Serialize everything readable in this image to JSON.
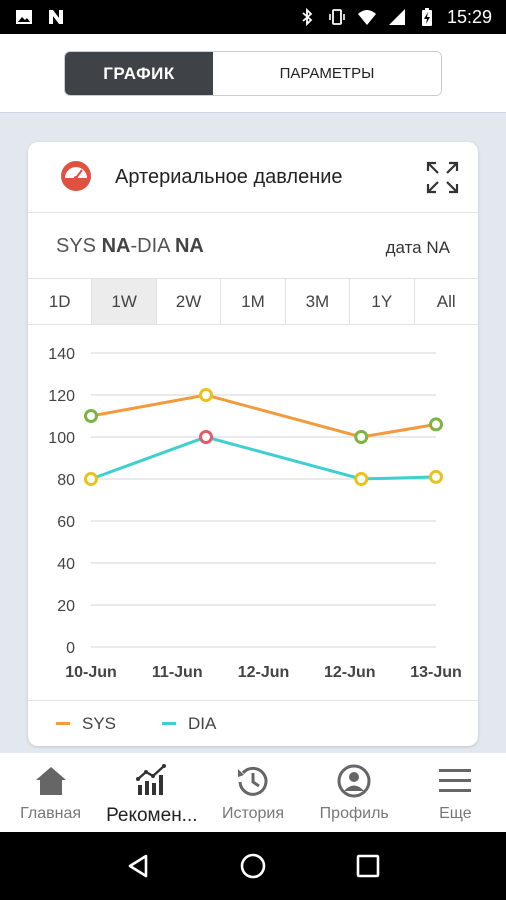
{
  "status_bar": {
    "time": "15:29",
    "left_icons": [
      "image-icon",
      "n-app-icon"
    ],
    "right_icons": [
      "bluetooth-icon",
      "vibrate-icon",
      "wifi-icon",
      "signal-icon",
      "battery-charging-icon"
    ]
  },
  "tabs": [
    {
      "label": "ГРАФИК",
      "active": true
    },
    {
      "label": "ПАРАМЕТРЫ",
      "active": false
    }
  ],
  "card": {
    "title": "Артериальное давление",
    "icon": "gauge-icon",
    "expand_icon": "expand-icon",
    "sys_label": "SYS",
    "sys_value": "NA",
    "separator": "-",
    "dia_label": "DIA",
    "dia_value": "NA",
    "date_label": "дата",
    "date_value": "NA"
  },
  "ranges": [
    {
      "label": "1D",
      "active": false
    },
    {
      "label": "1W",
      "active": true
    },
    {
      "label": "2W",
      "active": false
    },
    {
      "label": "1M",
      "active": false
    },
    {
      "label": "3M",
      "active": false
    },
    {
      "label": "1Y",
      "active": false
    },
    {
      "label": "All",
      "active": false
    }
  ],
  "chart_data": {
    "type": "line",
    "categories": [
      "10-Jun",
      "11-Jun",
      "12-Jun",
      "12-Jun",
      "13-Jun"
    ],
    "x": [
      0,
      1,
      2.35,
      3
    ],
    "x_tick_positions": [
      0,
      0.75,
      1.5,
      2.25,
      3
    ],
    "ylim": [
      0,
      140
    ],
    "yticks": [
      0,
      20,
      40,
      60,
      80,
      100,
      120,
      140
    ],
    "grid": true,
    "legend": "bottom",
    "series": [
      {
        "name": "SYS",
        "color": "#f39a3e",
        "values": [
          110,
          120,
          100,
          106
        ],
        "point_colors": [
          "#7cb342",
          "#e8c21d",
          "#7cb342",
          "#7cb342"
        ]
      },
      {
        "name": "DIA",
        "color": "#3fcfcf",
        "values": [
          80,
          100,
          80,
          81
        ],
        "point_colors": [
          "#e8c21d",
          "#e05b6c",
          "#e8c21d",
          "#e8c21d"
        ]
      }
    ]
  },
  "bottom_nav": [
    {
      "label": "Главная",
      "icon": "home-icon",
      "active": false
    },
    {
      "label": "Рекомен...",
      "icon": "bar-chart-icon",
      "active": true
    },
    {
      "label": "История",
      "icon": "history-icon",
      "active": false
    },
    {
      "label": "Профиль",
      "icon": "profile-icon",
      "active": false
    },
    {
      "label": "Еще",
      "icon": "menu-icon",
      "active": false
    }
  ],
  "system_nav": [
    "back-icon",
    "home-circle-icon",
    "recents-icon"
  ]
}
